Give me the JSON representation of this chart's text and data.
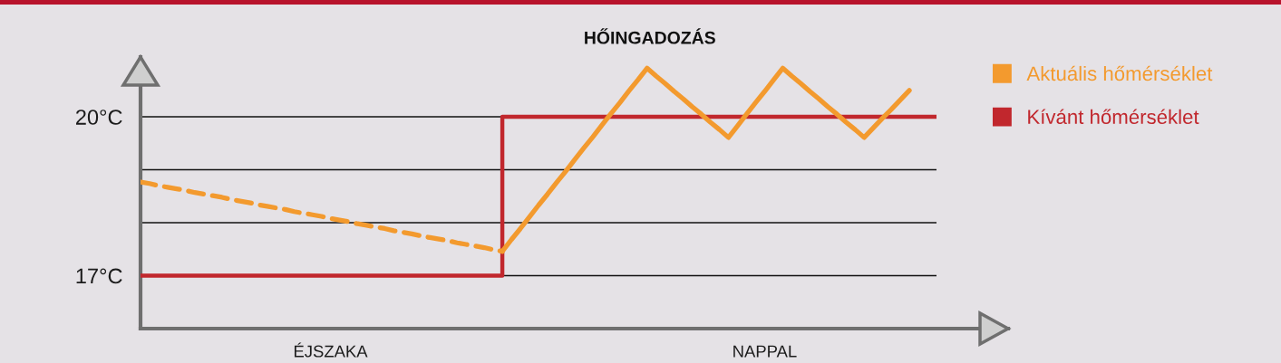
{
  "chart_data": {
    "type": "line",
    "title": "HŐINGADOZÁS",
    "categories": [
      null,
      null,
      null,
      null,
      null,
      null,
      null,
      null,
      null,
      null,
      null,
      null,
      null,
      null,
      null,
      null,
      null,
      null,
      null,
      null,
      null,
      "ÉJSZAKA",
      null,
      null,
      null,
      null,
      null,
      null,
      null,
      null,
      null,
      null,
      null,
      null,
      null,
      null,
      null,
      null,
      null,
      null,
      null,
      null,
      null,
      null,
      null,
      null,
      null,
      null,
      null,
      null,
      null,
      null,
      null,
      null,
      null,
      null,
      null,
      null,
      null,
      null,
      null,
      null,
      null,
      null,
      null,
      null,
      null,
      null,
      null,
      "NAPPAL",
      null,
      null,
      null,
      null,
      null,
      null,
      null,
      null,
      null,
      null,
      null,
      null,
      null,
      null,
      null,
      null,
      null,
      null,
      null
    ],
    "series": [
      {
        "color": "#f39a2e",
        "line_style": "dashed",
        "values": [
          18.77,
          18.74,
          18.7,
          18.67,
          18.64,
          18.61,
          18.57,
          18.54,
          18.51,
          18.48,
          18.44,
          18.41,
          18.38,
          18.34,
          18.31,
          18.28,
          18.25,
          18.21,
          18.18,
          18.15,
          18.12,
          18.08,
          18.05,
          18.02,
          17.98,
          17.95,
          17.92,
          17.89,
          17.85,
          17.82,
          17.79,
          17.75,
          17.72,
          17.69,
          17.66,
          17.62,
          17.59,
          17.56,
          17.53,
          17.49,
          17.46,
          null,
          null,
          null,
          null,
          null,
          null,
          null,
          null,
          null,
          null,
          null,
          null,
          null,
          null,
          null,
          null,
          null,
          null,
          null,
          null,
          null,
          null,
          null,
          null,
          null,
          null,
          null,
          null,
          null,
          null,
          null,
          null,
          null,
          null,
          null,
          null,
          null,
          null,
          null,
          null,
          null,
          null,
          null,
          null,
          null,
          null,
          null,
          null
        ]
      },
      {
        "name": "Aktuális hőmérséklet",
        "color": "#f39a2e",
        "values": [
          null,
          null,
          null,
          null,
          null,
          null,
          null,
          null,
          null,
          null,
          null,
          null,
          null,
          null,
          null,
          null,
          null,
          null,
          null,
          null,
          null,
          null,
          null,
          null,
          null,
          null,
          null,
          null,
          null,
          null,
          null,
          null,
          null,
          null,
          null,
          null,
          null,
          null,
          null,
          null,
          17.46,
          17.68,
          17.89,
          18.11,
          18.33,
          18.54,
          18.76,
          18.97,
          19.19,
          19.41,
          19.62,
          19.84,
          20.06,
          20.27,
          20.49,
          20.7,
          20.92,
          20.77,
          20.63,
          20.48,
          20.34,
          20.19,
          20.05,
          19.9,
          19.76,
          19.61,
          19.83,
          20.05,
          20.27,
          20.48,
          20.7,
          20.92,
          20.77,
          20.63,
          20.48,
          20.34,
          20.19,
          20.05,
          19.9,
          19.76,
          19.61,
          19.79,
          19.97,
          20.14,
          20.32,
          20.5,
          null,
          null,
          null
        ]
      },
      {
        "name": "Kívánt hőmérséklet",
        "type": "step",
        "color": "#c1272d",
        "values": [
          17,
          17,
          17,
          17,
          17,
          17,
          17,
          17,
          17,
          17,
          17,
          17,
          17,
          17,
          17,
          17,
          17,
          17,
          17,
          17,
          17,
          17,
          17,
          17,
          17,
          17,
          17,
          17,
          17,
          17,
          17,
          17,
          17,
          17,
          17,
          17,
          17,
          17,
          17,
          17,
          20,
          20,
          20,
          20,
          20,
          20,
          20,
          20,
          20,
          20,
          20,
          20,
          20,
          20,
          20,
          20,
          20,
          20,
          20,
          20,
          20,
          20,
          20,
          20,
          20,
          20,
          20,
          20,
          20,
          20,
          20,
          20,
          20,
          20,
          20,
          20,
          20,
          20,
          20,
          20,
          20,
          20,
          20,
          20,
          20,
          20,
          20,
          20,
          20
        ]
      }
    ],
    "ylim": [
      16.0,
      21.13
    ],
    "yticks": [
      {
        "value": 17,
        "label": "17°C"
      },
      {
        "value": 18,
        "label": null
      },
      {
        "value": 19,
        "label": null
      },
      {
        "value": 20,
        "label": "20°C"
      }
    ],
    "grid": "y",
    "legend": "right",
    "line_style": "solid"
  }
}
